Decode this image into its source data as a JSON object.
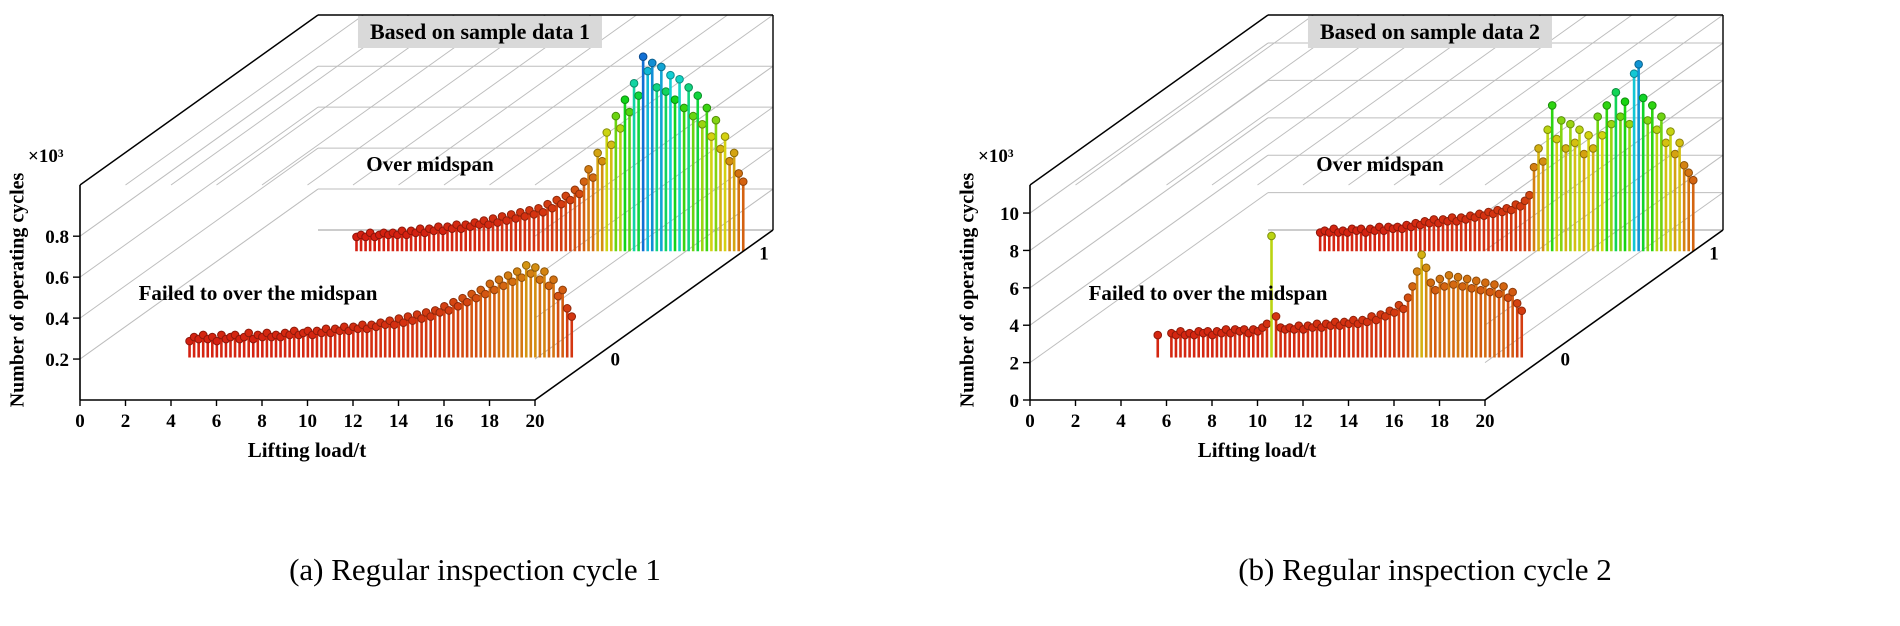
{
  "figure": {
    "captions": [
      "(a) Regular inspection cycle 1",
      "(b) Regular inspection cycle 2"
    ]
  },
  "style": {
    "background": "#ffffff",
    "grid_color": "#bdbdbd",
    "axis_color": "#000000",
    "title_bg": "#d9d9d9",
    "text_color": "#000000",
    "colormap_anchors": [
      [
        0,
        0
      ],
      [
        0.25,
        15
      ],
      [
        0.4,
        35
      ],
      [
        0.55,
        62
      ],
      [
        0.7,
        120
      ],
      [
        0.8,
        175
      ],
      [
        0.9,
        210
      ],
      [
        1,
        235
      ]
    ],
    "stem_saturation": 85,
    "stem_lightness": 45
  },
  "chart_data": [
    {
      "type": "scatter",
      "variant": "3d-stem-plot",
      "title": "Based on sample data 1",
      "xlabel": "Lifting load/t",
      "zlabel": "Number of operating cycles",
      "z_scale_label": "×10³",
      "xlim": [
        0,
        20
      ],
      "zlim": [
        0,
        1.05
      ],
      "x_ticks": [
        0,
        2,
        4,
        6,
        8,
        10,
        12,
        14,
        16,
        18,
        20
      ],
      "z_ticks": [
        0.2,
        0.4,
        0.6,
        0.8
      ],
      "y_ticks": [
        0,
        1
      ],
      "grid": true,
      "series": [
        {
          "name": "Over midspan",
          "y": 1,
          "segments": [
            {
              "x_start": 3.0,
              "x_step": 0.2,
              "z": [
                0.07,
                0.08,
                0.07,
                0.09,
                0.07,
                0.08,
                0.09,
                0.08,
                0.09,
                0.08,
                0.1,
                0.08,
                0.1,
                0.09,
                0.11,
                0.09,
                0.11,
                0.1,
                0.12,
                0.1,
                0.12,
                0.11,
                0.13,
                0.11,
                0.13,
                0.12,
                0.14,
                0.13,
                0.15,
                0.13,
                0.16,
                0.14,
                0.17,
                0.15,
                0.18,
                0.16,
                0.19,
                0.17,
                0.2,
                0.18,
                0.21,
                0.19,
                0.23,
                0.21,
                0.25,
                0.23,
                0.27,
                0.25,
                0.3,
                0.28,
                0.34,
                0.4,
                0.36,
                0.48,
                0.44,
                0.58,
                0.52,
                0.66,
                0.6,
                0.74,
                0.68,
                0.82,
                0.76,
                0.95,
                0.88,
                0.92,
                0.8,
                0.9,
                0.78,
                0.86,
                0.74,
                0.84,
                0.7,
                0.8,
                0.66,
                0.76,
                0.62,
                0.7,
                0.56,
                0.64,
                0.5,
                0.56,
                0.44,
                0.48,
                0.38,
                0.34
              ]
            }
          ]
        },
        {
          "name": "Failed to over the midspan",
          "y": 0,
          "segments": [
            {
              "x_start": 2.2,
              "x_step": 0.2,
              "z": [
                0.08,
                0.1,
                0.09,
                0.11,
                0.09,
                0.1,
                0.08,
                0.11,
                0.09,
                0.1,
                0.11,
                0.09,
                0.1,
                0.12,
                0.09,
                0.11,
                0.1,
                0.12,
                0.1,
                0.11,
                0.1,
                0.12,
                0.11,
                0.13,
                0.11,
                0.12,
                0.13,
                0.11,
                0.13,
                0.12,
                0.14,
                0.12,
                0.14,
                0.13,
                0.15,
                0.13,
                0.15,
                0.14,
                0.16,
                0.14,
                0.16,
                0.15,
                0.17,
                0.16,
                0.18,
                0.16,
                0.19,
                0.17,
                0.2,
                0.18,
                0.21,
                0.19,
                0.22,
                0.2,
                0.23,
                0.22,
                0.25,
                0.23,
                0.27,
                0.25,
                0.29,
                0.27,
                0.31,
                0.29,
                0.33,
                0.31,
                0.36,
                0.33,
                0.38,
                0.35,
                0.4,
                0.37,
                0.42,
                0.39,
                0.45,
                0.41,
                0.44,
                0.38,
                0.42,
                0.35,
                0.38,
                0.3,
                0.33,
                0.24,
                0.2
              ]
            }
          ]
        }
      ]
    },
    {
      "type": "scatter",
      "variant": "3d-stem-plot",
      "title": "Based on sample data 2",
      "xlabel": "Lifting load/t",
      "zlabel": "Number of operating cycles",
      "z_scale_label": "×10³",
      "xlim": [
        0,
        20
      ],
      "zlim": [
        0,
        11.5
      ],
      "x_ticks": [
        0,
        2,
        4,
        6,
        8,
        10,
        12,
        14,
        16,
        18,
        20
      ],
      "z_ticks": [
        0,
        2,
        4,
        6,
        8,
        10
      ],
      "y_ticks": [
        0,
        1
      ],
      "grid": true,
      "series": [
        {
          "name": "Over midspan",
          "y": 1,
          "segments": [
            {
              "x_start": 3.6,
              "x_step": 0.2,
              "z": [
                1.0,
                1.1,
                1.0,
                1.2,
                1.0,
                1.1,
                1.0,
                1.2,
                1.1,
                1.2,
                1.0,
                1.2,
                1.1,
                1.3,
                1.1,
                1.3,
                1.2,
                1.3,
                1.2,
                1.4,
                1.3,
                1.5,
                1.4,
                1.6,
                1.5,
                1.7,
                1.5,
                1.7,
                1.6,
                1.8,
                1.6,
                1.8,
                1.7,
                1.9,
                1.8,
                2.0,
                1.9,
                2.1,
                2.0,
                2.2,
                2.1,
                2.3,
                2.2,
                2.5,
                2.4,
                2.7,
                3.0,
                4.5,
                5.5,
                4.8,
                6.5,
                7.8,
                6.0,
                7.0,
                5.5,
                6.8,
                5.8,
                6.5,
                5.2,
                6.2,
                5.5,
                7.2,
                6.2,
                7.8,
                6.8,
                8.5,
                7.2,
                8.0,
                6.8,
                9.5,
                10.0,
                8.2,
                7.0,
                7.8,
                6.5,
                7.2,
                5.8,
                6.4,
                5.2,
                5.8,
                4.6,
                4.2,
                3.8
              ]
            }
          ]
        },
        {
          "name": "Failed to over the midspan",
          "y": 0,
          "segments": [
            {
              "x_start": 3.0,
              "x_step": 0.2,
              "z": [
                1.2
              ]
            },
            {
              "x_start": 3.6,
              "x_step": 0.2,
              "z": [
                1.3,
                1.2,
                1.4,
                1.2,
                1.3,
                1.2,
                1.4,
                1.3,
                1.4,
                1.2,
                1.4,
                1.3,
                1.5,
                1.3,
                1.5,
                1.4,
                1.5,
                1.3,
                1.5,
                1.4,
                1.6,
                1.8,
                6.5,
                2.2,
                1.6,
                1.5,
                1.6,
                1.5,
                1.7,
                1.5,
                1.7,
                1.6,
                1.8,
                1.6,
                1.8,
                1.7,
                1.9,
                1.7,
                1.9,
                1.8,
                2.0,
                1.8,
                2.0,
                1.9,
                2.2,
                2.0,
                2.3,
                2.2,
                2.5,
                2.4,
                2.8,
                2.6,
                3.2,
                3.8,
                4.6,
                5.5,
                4.8,
                4.0,
                3.6,
                4.2,
                3.8,
                4.4,
                3.9,
                4.3,
                3.8,
                4.2,
                3.7,
                4.1,
                3.6,
                4.0,
                3.5,
                3.9,
                3.4,
                3.8,
                3.2,
                3.5,
                2.9,
                2.5
              ]
            }
          ]
        }
      ]
    }
  ]
}
